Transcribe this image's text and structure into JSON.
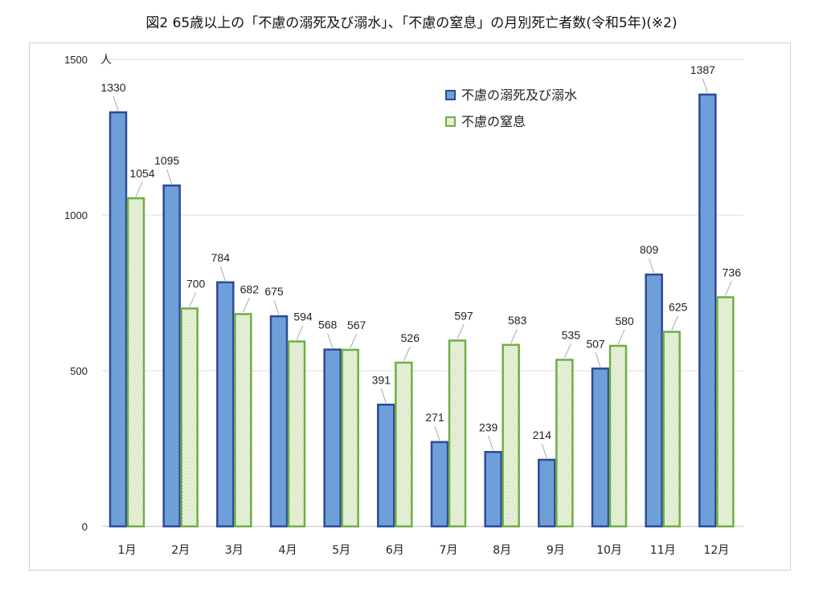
{
  "title": "図2 65歳以上の「不慮の溺死及び溺水」、「不慮の窒息」の月別死亡者数(令和5年)(※2)",
  "chart_data": {
    "type": "bar",
    "title": "図2 65歳以上の「不慮の溺死及び溺水」、「不慮の窒息」の月別死亡者数(令和5年)(※2)",
    "ylabel": "人",
    "xlabel": "",
    "ylim": [
      0,
      1500
    ],
    "yticks": [
      0,
      500,
      1000,
      1500
    ],
    "grid": true,
    "legend_position": "top-right",
    "categories": [
      "1月",
      "2月",
      "3月",
      "4月",
      "5月",
      "6月",
      "7月",
      "8月",
      "9月",
      "10月",
      "11月",
      "12月"
    ],
    "series": [
      {
        "name": "不慮の溺死及び溺水",
        "fill": "#6f9fd8",
        "stroke": "#2c4a9a",
        "values": [
          1330,
          1095,
          784,
          675,
          568,
          391,
          271,
          239,
          214,
          507,
          809,
          1387
        ]
      },
      {
        "name": "不慮の窒息",
        "fill": "#e6f0d4",
        "stroke": "#70ad47",
        "values": [
          1054,
          700,
          682,
          594,
          567,
          526,
          597,
          583,
          535,
          580,
          625,
          736
        ]
      }
    ]
  }
}
